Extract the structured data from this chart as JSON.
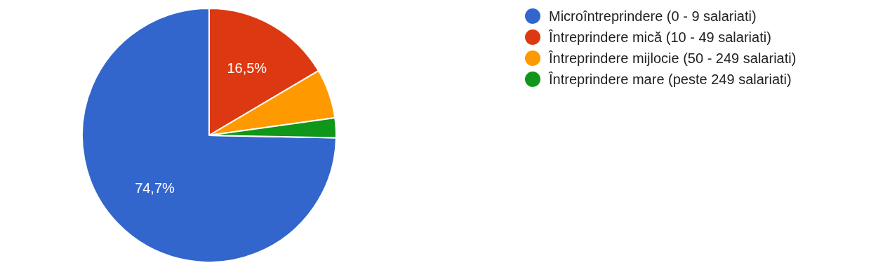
{
  "chart_data": {
    "type": "pie",
    "categories": [
      "Microîntreprindere (0 - 9 salariati)",
      "Întreprindere mică (10 - 49 salariati)",
      "Întreprindere mijlocie (50 - 249 salariati)",
      "Întreprindere mare (peste 249 salariati)"
    ],
    "values": [
      74.7,
      16.5,
      6.3,
      2.5
    ],
    "colors": [
      "#3366cc",
      "#dc3912",
      "#ff9900",
      "#109618"
    ],
    "value_labels": [
      "74,7%",
      "16,5%",
      null,
      null
    ],
    "legend": "top right"
  }
}
